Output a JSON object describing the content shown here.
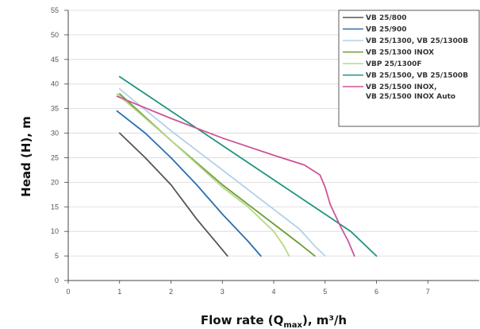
{
  "chart_data": {
    "type": "line",
    "title": "",
    "xlabel": "Flow rate (Q",
    "xlabel_sub": "max",
    "xlabel_suffix": "), m³/h",
    "ylabel": "Head (H), m",
    "xlim": [
      0,
      8
    ],
    "ylim": [
      0,
      55
    ],
    "x_ticks": [
      "0",
      "1",
      "2",
      "3",
      "4",
      "5",
      "6",
      "7"
    ],
    "y_ticks": [
      "0",
      "5",
      "10",
      "15",
      "20",
      "25",
      "30",
      "35",
      "40",
      "45",
      "50",
      "55"
    ],
    "grid": "horizontal",
    "legend_position": "top-right",
    "series": [
      {
        "name": "VB 25/800",
        "color": "#555555",
        "points": [
          [
            1.0,
            30.0
          ],
          [
            1.5,
            25.0
          ],
          [
            2.0,
            19.5
          ],
          [
            2.5,
            12.5
          ],
          [
            2.9,
            7.5
          ],
          [
            3.1,
            5.0
          ]
        ]
      },
      {
        "name": "VB 25/900",
        "color": "#2a6fae",
        "points": [
          [
            0.95,
            34.5
          ],
          [
            1.5,
            30.0
          ],
          [
            2.0,
            25.0
          ],
          [
            2.5,
            19.5
          ],
          [
            3.0,
            13.5
          ],
          [
            3.5,
            8.0
          ],
          [
            3.75,
            5.0
          ]
        ]
      },
      {
        "name": "VB 25/1300, VB 25/1300B",
        "color": "#b5d1e8",
        "points": [
          [
            1.0,
            39.0
          ],
          [
            2.0,
            30.5
          ],
          [
            3.0,
            22.5
          ],
          [
            4.0,
            14.5
          ],
          [
            4.5,
            10.5
          ],
          [
            4.8,
            7.0
          ],
          [
            5.0,
            5.0
          ]
        ]
      },
      {
        "name": "VB 25/1300 INOX",
        "color": "#6b9e32",
        "points": [
          [
            1.0,
            38.0
          ],
          [
            2.0,
            28.5
          ],
          [
            3.0,
            19.5
          ],
          [
            3.5,
            15.5
          ],
          [
            4.0,
            11.5
          ],
          [
            4.5,
            7.5
          ],
          [
            4.8,
            5.0
          ]
        ]
      },
      {
        "name": "VBP 25/1300F",
        "color": "#b7d98a",
        "points": [
          [
            0.95,
            38.0
          ],
          [
            2.0,
            28.5
          ],
          [
            3.0,
            19.0
          ],
          [
            3.5,
            15.0
          ],
          [
            4.0,
            10.0
          ],
          [
            4.2,
            7.0
          ],
          [
            4.3,
            5.0
          ]
        ]
      },
      {
        "name": "VB 25/1500, VB 25/1500B",
        "color": "#1f9480",
        "points": [
          [
            1.0,
            41.5
          ],
          [
            2.0,
            34.5
          ],
          [
            3.0,
            27.5
          ],
          [
            4.0,
            20.5
          ],
          [
            5.0,
            13.5
          ],
          [
            5.5,
            10.0
          ],
          [
            6.0,
            5.0
          ]
        ]
      },
      {
        "name": "VB 25/1500 INOX,",
        "name_line2": "VB 25/1500 INOX Auto",
        "color": "#cc5599",
        "points": [
          [
            0.95,
            37.5
          ],
          [
            2.0,
            33.0
          ],
          [
            3.0,
            29.0
          ],
          [
            4.0,
            25.5
          ],
          [
            4.6,
            23.5
          ],
          [
            4.9,
            21.5
          ],
          [
            5.0,
            19.0
          ],
          [
            5.1,
            15.5
          ],
          [
            5.3,
            11.0
          ],
          [
            5.45,
            8.0
          ],
          [
            5.57,
            5.0
          ]
        ]
      }
    ]
  }
}
